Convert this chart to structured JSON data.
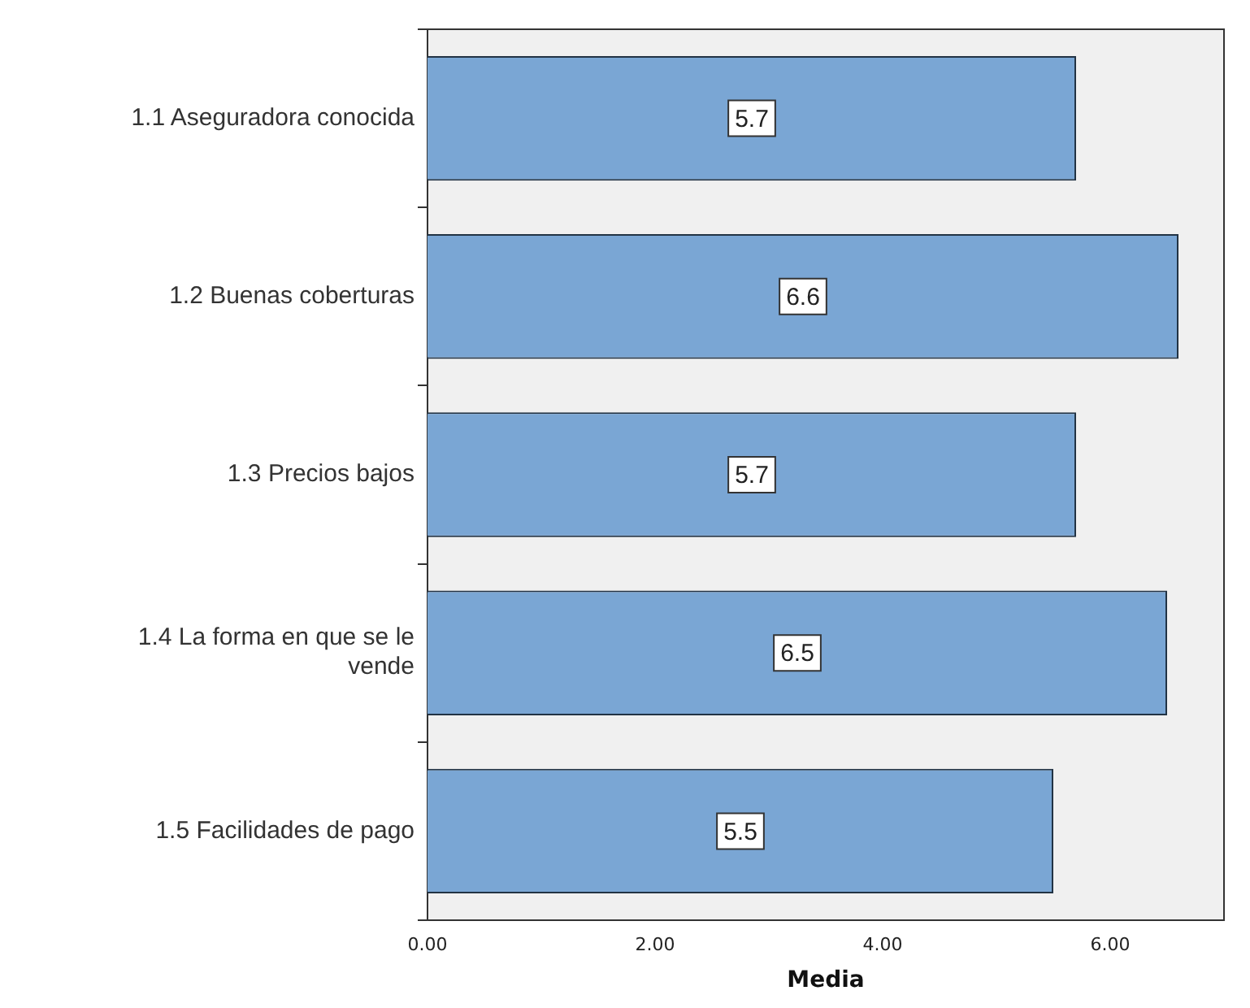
{
  "chart_data": {
    "type": "bar",
    "orientation": "horizontal",
    "xlabel": "Media",
    "categories": [
      "1.1 Aseguradora conocida",
      "1.2 Buenas coberturas",
      "1.3 Precios bajos",
      "1.4 La forma en que se le vende",
      "1.5 Facilidades de pago"
    ],
    "values": [
      5.7,
      6.6,
      5.7,
      6.5,
      5.5
    ],
    "color": "#7aa6d4",
    "xlim": [
      0,
      7
    ],
    "xticks": [
      {
        "value": 0,
        "label": "0.00"
      },
      {
        "value": 2,
        "label": "2.00"
      },
      {
        "value": 4,
        "label": "4.00"
      },
      {
        "value": 6,
        "label": "6.00"
      }
    ],
    "grid": false,
    "legend": false,
    "data_labels": true
  }
}
